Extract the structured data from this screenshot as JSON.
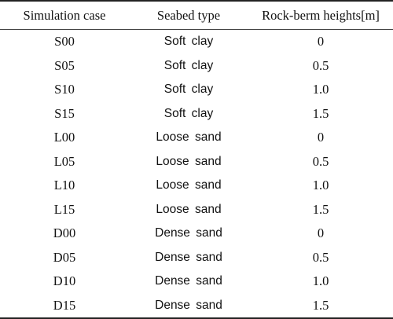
{
  "table": {
    "headers": [
      "Simulation case",
      "Seabed type",
      "Rock-berm heights[m]"
    ],
    "rows": [
      [
        "S00",
        "Soft clay",
        "0"
      ],
      [
        "S05",
        "Soft clay",
        "0.5"
      ],
      [
        "S10",
        "Soft clay",
        "1.0"
      ],
      [
        "S15",
        "Soft clay",
        "1.5"
      ],
      [
        "L00",
        "Loose sand",
        "0"
      ],
      [
        "L05",
        "Loose sand",
        "0.5"
      ],
      [
        "L10",
        "Loose sand",
        "1.0"
      ],
      [
        "L15",
        "Loose sand",
        "1.5"
      ],
      [
        "D00",
        "Dense sand",
        "0"
      ],
      [
        "D05",
        "Dense sand",
        "0.5"
      ],
      [
        "D10",
        "Dense sand",
        "1.0"
      ],
      [
        "D15",
        "Dense sand",
        "1.5"
      ]
    ]
  }
}
